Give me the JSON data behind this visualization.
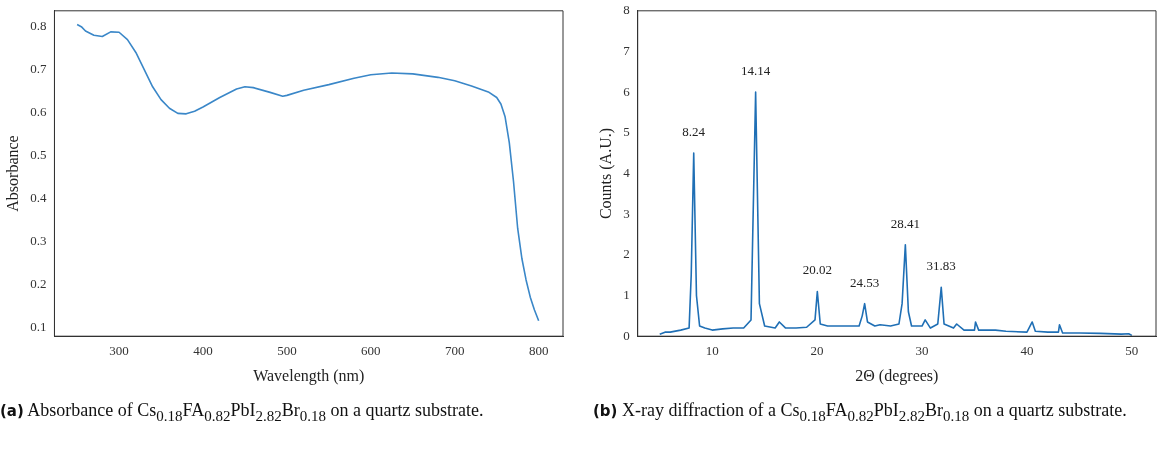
{
  "chart_data": [
    {
      "type": "line",
      "xlabel": "Wavelength (nm)",
      "ylabel": "Absorbance",
      "xlim": [
        223,
        829
      ],
      "ylim": [
        0.079,
        0.837
      ],
      "xticks": [
        300,
        400,
        500,
        600,
        700,
        800
      ],
      "yticks": [
        {
          "value": 0.1,
          "label": "0.1"
        },
        {
          "value": 0.2,
          "label": "0.2"
        },
        {
          "value": 0.3,
          "label": "0.3"
        },
        {
          "value": 0.4,
          "label": "0.4"
        },
        {
          "value": 0.5,
          "label": "0.5"
        },
        {
          "value": 0.6,
          "label": "0.6"
        },
        {
          "value": 0.7,
          "label": "0.7"
        },
        {
          "value": 0.8,
          "label": "0.8"
        }
      ],
      "marker": "none",
      "annotations": [
        "(a) Absorbance of Cs$_{0.18}$FA$_{0.82}$PbI$_{2.82}$Br$_{0.18}$ on a quartz substrate."
      ],
      "series": [
        {
          "color": "#3a87c8",
          "x": [
            250,
            255,
            260,
            270,
            280,
            290,
            300,
            310,
            320,
            330,
            340,
            350,
            360,
            370,
            380,
            390,
            400,
            420,
            440,
            450,
            460,
            480,
            495,
            500,
            520,
            550,
            580,
            600,
            625,
            650,
            680,
            700,
            720,
            740,
            750,
            755,
            760,
            765,
            770,
            775,
            780,
            785,
            790,
            795,
            800
          ],
          "values": [
            0.805,
            0.8,
            0.79,
            0.78,
            0.777,
            0.788,
            0.787,
            0.77,
            0.74,
            0.7,
            0.66,
            0.63,
            0.61,
            0.598,
            0.597,
            0.603,
            0.613,
            0.635,
            0.655,
            0.66,
            0.658,
            0.647,
            0.638,
            0.64,
            0.652,
            0.665,
            0.68,
            0.688,
            0.692,
            0.69,
            0.682,
            0.674,
            0.662,
            0.648,
            0.635,
            0.62,
            0.59,
            0.53,
            0.44,
            0.33,
            0.26,
            0.21,
            0.17,
            0.14,
            0.115
          ]
        }
      ]
    },
    {
      "type": "line",
      "xlabel": "2Θ (degrees)",
      "ylabel": "Counts (A.U.)",
      "xlim": [
        2.9,
        52.3
      ],
      "ylim": [
        0,
        8
      ],
      "xticks": [
        10,
        20,
        30,
        40,
        50
      ],
      "yticks": [
        0,
        1,
        2,
        3,
        4,
        5,
        6,
        7,
        8
      ],
      "marker": "none",
      "annotations": [
        {
          "text": "8.24",
          "x": 8.24,
          "y": 4.5
        },
        {
          "text": "14.14",
          "x": 14.14,
          "y": 6
        },
        {
          "text": "20.02",
          "x": 20.02,
          "y": 1.1
        },
        {
          "text": "24.53",
          "x": 24.53,
          "y": 0.8
        },
        {
          "text": "28.41",
          "x": 28.41,
          "y": 2.25
        },
        {
          "text": "31.83",
          "x": 31.83,
          "y": 1.2
        },
        "(b) X-ray diffraction of a Cs$_{0.18}$FA$_{0.82}$PbI$_{2.82}$Br$_{0.18}$ on a quartz substrate."
      ],
      "series": [
        {
          "color": "#1f6fb5",
          "x": [
            5,
            5.5,
            6,
            7,
            7.8,
            8,
            8.24,
            8.5,
            8.8,
            9.3,
            10,
            11,
            12,
            13,
            13.7,
            14.14,
            14.5,
            15,
            16,
            16.4,
            17,
            18,
            19,
            19.8,
            20.02,
            20.3,
            21,
            22,
            23,
            24,
            24.3,
            24.53,
            24.8,
            25.5,
            26,
            27,
            27.8,
            28.1,
            28.41,
            28.7,
            29,
            30,
            30.3,
            30.8,
            31.5,
            31.83,
            32.1,
            33,
            33.3,
            34,
            35,
            35.1,
            35.4,
            37,
            38,
            40,
            40.5,
            40.8,
            42,
            43,
            43.1,
            43.4,
            45,
            47,
            49,
            49.7,
            50
          ],
          "values": [
            0.05,
            0.1,
            0.1,
            0.15,
            0.2,
            1.5,
            4.5,
            1,
            0.25,
            0.2,
            0.15,
            0.18,
            0.2,
            0.2,
            0.4,
            6,
            0.8,
            0.25,
            0.2,
            0.35,
            0.2,
            0.2,
            0.22,
            0.4,
            1.1,
            0.3,
            0.25,
            0.25,
            0.25,
            0.25,
            0.5,
            0.8,
            0.35,
            0.25,
            0.28,
            0.25,
            0.3,
            0.8,
            2.25,
            0.6,
            0.25,
            0.25,
            0.4,
            0.2,
            0.3,
            1.2,
            0.3,
            0.2,
            0.3,
            0.15,
            0.15,
            0.35,
            0.15,
            0.15,
            0.12,
            0.1,
            0.35,
            0.12,
            0.1,
            0.1,
            0.28,
            0.08,
            0.08,
            0.07,
            0.05,
            0.06,
            0.02
          ]
        }
      ]
    }
  ]
}
